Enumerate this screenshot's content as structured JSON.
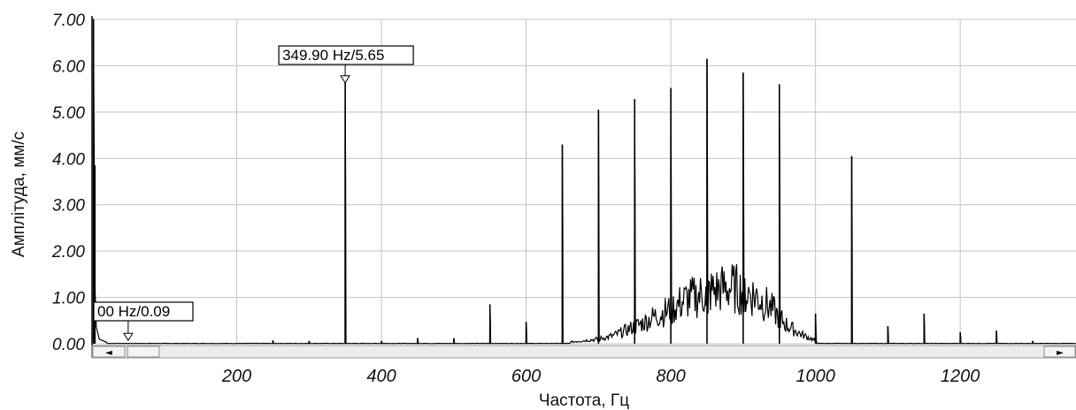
{
  "chart_data": {
    "type": "line",
    "title": "",
    "xlabel": "Частота, Гц",
    "ylabel": "Амплітуда, мм/с",
    "xlim": [
      0,
      1360
    ],
    "ylim": [
      0,
      7
    ],
    "x_ticks": [
      200,
      400,
      600,
      800,
      1000,
      1200
    ],
    "x_tick_labels": [
      "200",
      "400",
      "600",
      "800",
      "1000",
      "1200"
    ],
    "y_ticks": [
      0,
      1,
      2,
      3,
      4,
      5,
      6,
      7
    ],
    "y_tick_labels": [
      "0.00",
      "1.00",
      "2.00",
      "3.00",
      "4.00",
      "5.00",
      "6.00",
      "7.00"
    ],
    "grid": true,
    "line_color": "#000000",
    "series": [
      {
        "peaks": [
          {
            "x": 2,
            "y": 7.0
          },
          {
            "x": 4,
            "y": 3.85
          },
          {
            "x": 250,
            "y": 0.07
          },
          {
            "x": 300,
            "y": 0.06
          },
          {
            "x": 349.9,
            "y": 5.65
          },
          {
            "x": 400,
            "y": 0.06
          },
          {
            "x": 450,
            "y": 0.12
          },
          {
            "x": 500,
            "y": 0.12
          },
          {
            "x": 550,
            "y": 0.85
          },
          {
            "x": 600,
            "y": 0.47
          },
          {
            "x": 650,
            "y": 4.3
          },
          {
            "x": 700,
            "y": 5.05
          },
          {
            "x": 750,
            "y": 5.28
          },
          {
            "x": 800,
            "y": 5.52
          },
          {
            "x": 850,
            "y": 6.15
          },
          {
            "x": 900,
            "y": 5.85
          },
          {
            "x": 950,
            "y": 5.6
          },
          {
            "x": 1000,
            "y": 0.65
          },
          {
            "x": 1050,
            "y": 4.05
          },
          {
            "x": 1100,
            "y": 0.38
          },
          {
            "x": 1150,
            "y": 0.65
          },
          {
            "x": 1200,
            "y": 0.25
          },
          {
            "x": 1250,
            "y": 0.28
          },
          {
            "x": 1300,
            "y": 0.06
          }
        ],
        "noise_band": {
          "x": [
            660,
            680,
            700,
            720,
            740,
            760,
            780,
            800,
            820,
            840,
            860,
            880,
            900,
            920,
            940,
            960,
            980,
            1000
          ],
          "y": [
            0.05,
            0.1,
            0.15,
            0.25,
            0.45,
            0.65,
            0.9,
            1.1,
            1.4,
            1.55,
            1.7,
            1.8,
            1.7,
            1.5,
            1.1,
            0.6,
            0.3,
            0.1
          ]
        }
      }
    ],
    "markers": [
      {
        "label": "349.90 Hz/5.65",
        "x": 349.9,
        "y": 5.65
      },
      {
        "label": "00 Hz/0.09",
        "x": 50,
        "y": 0.09
      }
    ]
  },
  "scrollbar": {
    "left_arrow": "◄",
    "right_arrow": "►"
  }
}
